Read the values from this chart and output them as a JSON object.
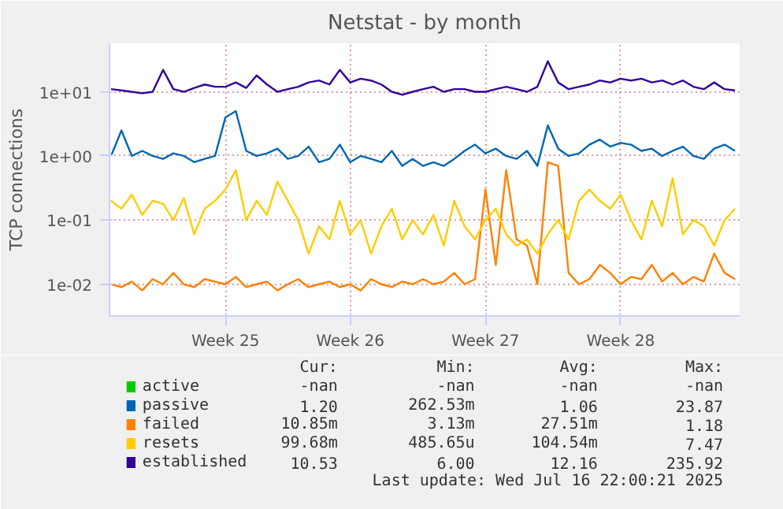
{
  "chart_data": {
    "type": "line",
    "title": "Netstat - by month",
    "ylabel": "TCP connections",
    "log": true,
    "categories": [
      null,
      null,
      null,
      null,
      null,
      null,
      null,
      null,
      null,
      null,
      null,
      "Week 25",
      null,
      null,
      null,
      null,
      null,
      null,
      null,
      null,
      null,
      null,
      null,
      "Week 26",
      null,
      null,
      null,
      null,
      null,
      null,
      null,
      null,
      null,
      null,
      null,
      null,
      "Week 27",
      null,
      null,
      null,
      null,
      null,
      null,
      null,
      null,
      null,
      null,
      null,
      null,
      "Week 28",
      null,
      null,
      null,
      null,
      null,
      null,
      null,
      null,
      null,
      null,
      null
    ],
    "ylim": [
      0.0032,
      57
    ],
    "yticks": [
      {
        "value": 0.01,
        "label": "1e-02"
      },
      {
        "value": 0.1,
        "label": "1e-01"
      },
      {
        "value": 1,
        "label": "1e+00"
      },
      {
        "value": 10,
        "label": "1e+01"
      }
    ],
    "grid": true,
    "legend": "bottom",
    "series": [
      {
        "name": "active",
        "color": "#00cc00",
        "values": [
          null,
          null,
          null,
          null,
          null,
          null,
          null,
          null,
          null,
          null,
          null,
          null,
          null,
          null,
          null,
          null,
          null,
          null,
          null,
          null,
          null,
          null,
          null,
          null,
          null,
          null,
          null,
          null,
          null,
          null,
          null,
          null,
          null,
          null,
          null,
          null,
          null,
          null,
          null,
          null,
          null,
          null,
          null,
          null,
          null,
          null,
          null,
          null,
          null,
          null,
          null,
          null,
          null,
          null,
          null,
          null,
          null,
          null,
          null,
          null,
          null
        ]
      },
      {
        "name": "passive",
        "color": "#0066b3",
        "values": [
          1,
          2.5,
          1,
          1.2,
          1,
          0.9,
          1.1,
          1,
          0.8,
          0.9,
          1,
          4,
          5,
          1.2,
          1,
          1.1,
          1.3,
          0.9,
          1,
          1.4,
          0.8,
          0.9,
          1.5,
          0.8,
          1,
          0.9,
          0.8,
          1.2,
          0.7,
          0.9,
          0.7,
          0.8,
          0.7,
          0.9,
          1.2,
          1.5,
          1.1,
          1.3,
          1,
          0.9,
          1.2,
          0.7,
          3,
          1.3,
          1,
          1.1,
          1.5,
          1.8,
          1.4,
          1.6,
          1.5,
          1.2,
          1.3,
          1,
          1.2,
          1.4,
          1,
          0.9,
          1.3,
          1.5,
          1.2
        ]
      },
      {
        "name": "failed",
        "color": "#ff8000",
        "values": [
          0.01,
          0.009,
          0.011,
          0.008,
          0.012,
          0.01,
          0.015,
          0.01,
          0.009,
          0.012,
          0.011,
          0.01,
          0.013,
          0.009,
          0.01,
          0.011,
          0.008,
          0.01,
          0.012,
          0.009,
          0.01,
          0.011,
          0.009,
          0.01,
          0.008,
          0.012,
          0.01,
          0.009,
          0.011,
          0.01,
          0.012,
          0.01,
          0.011,
          0.015,
          0.01,
          0.012,
          0.3,
          0.02,
          0.6,
          0.05,
          0.04,
          0.01,
          0.8,
          0.7,
          0.015,
          0.01,
          0.012,
          0.02,
          0.015,
          0.01,
          0.013,
          0.012,
          0.02,
          0.011,
          0.015,
          0.01,
          0.013,
          0.011,
          0.03,
          0.015,
          0.012
        ]
      },
      {
        "name": "resets",
        "color": "#ffcc00",
        "values": [
          0.2,
          0.15,
          0.25,
          0.12,
          0.2,
          0.18,
          0.1,
          0.22,
          0.06,
          0.15,
          0.2,
          0.3,
          0.6,
          0.1,
          0.2,
          0.12,
          0.4,
          0.2,
          0.1,
          0.03,
          0.08,
          0.05,
          0.2,
          0.06,
          0.1,
          0.03,
          0.08,
          0.15,
          0.05,
          0.1,
          0.06,
          0.12,
          0.04,
          0.2,
          0.08,
          0.05,
          0.1,
          0.15,
          0.06,
          0.04,
          0.05,
          0.03,
          0.06,
          0.1,
          0.05,
          0.2,
          0.3,
          0.2,
          0.15,
          0.25,
          0.1,
          0.05,
          0.2,
          0.08,
          0.45,
          0.06,
          0.1,
          0.08,
          0.04,
          0.1,
          0.15
        ]
      },
      {
        "name": "established",
        "color": "#330099",
        "values": [
          11,
          10.5,
          10,
          9.5,
          10,
          22,
          11,
          10,
          11.5,
          13,
          12,
          12,
          14,
          11.5,
          18,
          13,
          10,
          11,
          12,
          14,
          15,
          13,
          22,
          14,
          16,
          15,
          13,
          10,
          9,
          10,
          11,
          12,
          10,
          11,
          11,
          10,
          10,
          11,
          12,
          11,
          10,
          12,
          30,
          14,
          11,
          12,
          13,
          15,
          14,
          16,
          15,
          16,
          14,
          15,
          13,
          15,
          12,
          11,
          14,
          11,
          10.5
        ]
      }
    ],
    "annotations": [
      "Cur:",
      "Min:",
      "Avg:",
      "Max:",
      "-nan",
      "-nan",
      "-nan",
      "-nan",
      "1.20",
      "262.53m",
      "1.06",
      "23.87",
      "10.85m",
      "3.13m",
      "27.51m",
      "1.18",
      "99.68m",
      "485.65u",
      "104.54m",
      "7.47",
      "10.53",
      "6.00",
      "12.16",
      "235.92",
      "Last update: Wed Jul 16 22:00:21 2025"
    ]
  }
}
